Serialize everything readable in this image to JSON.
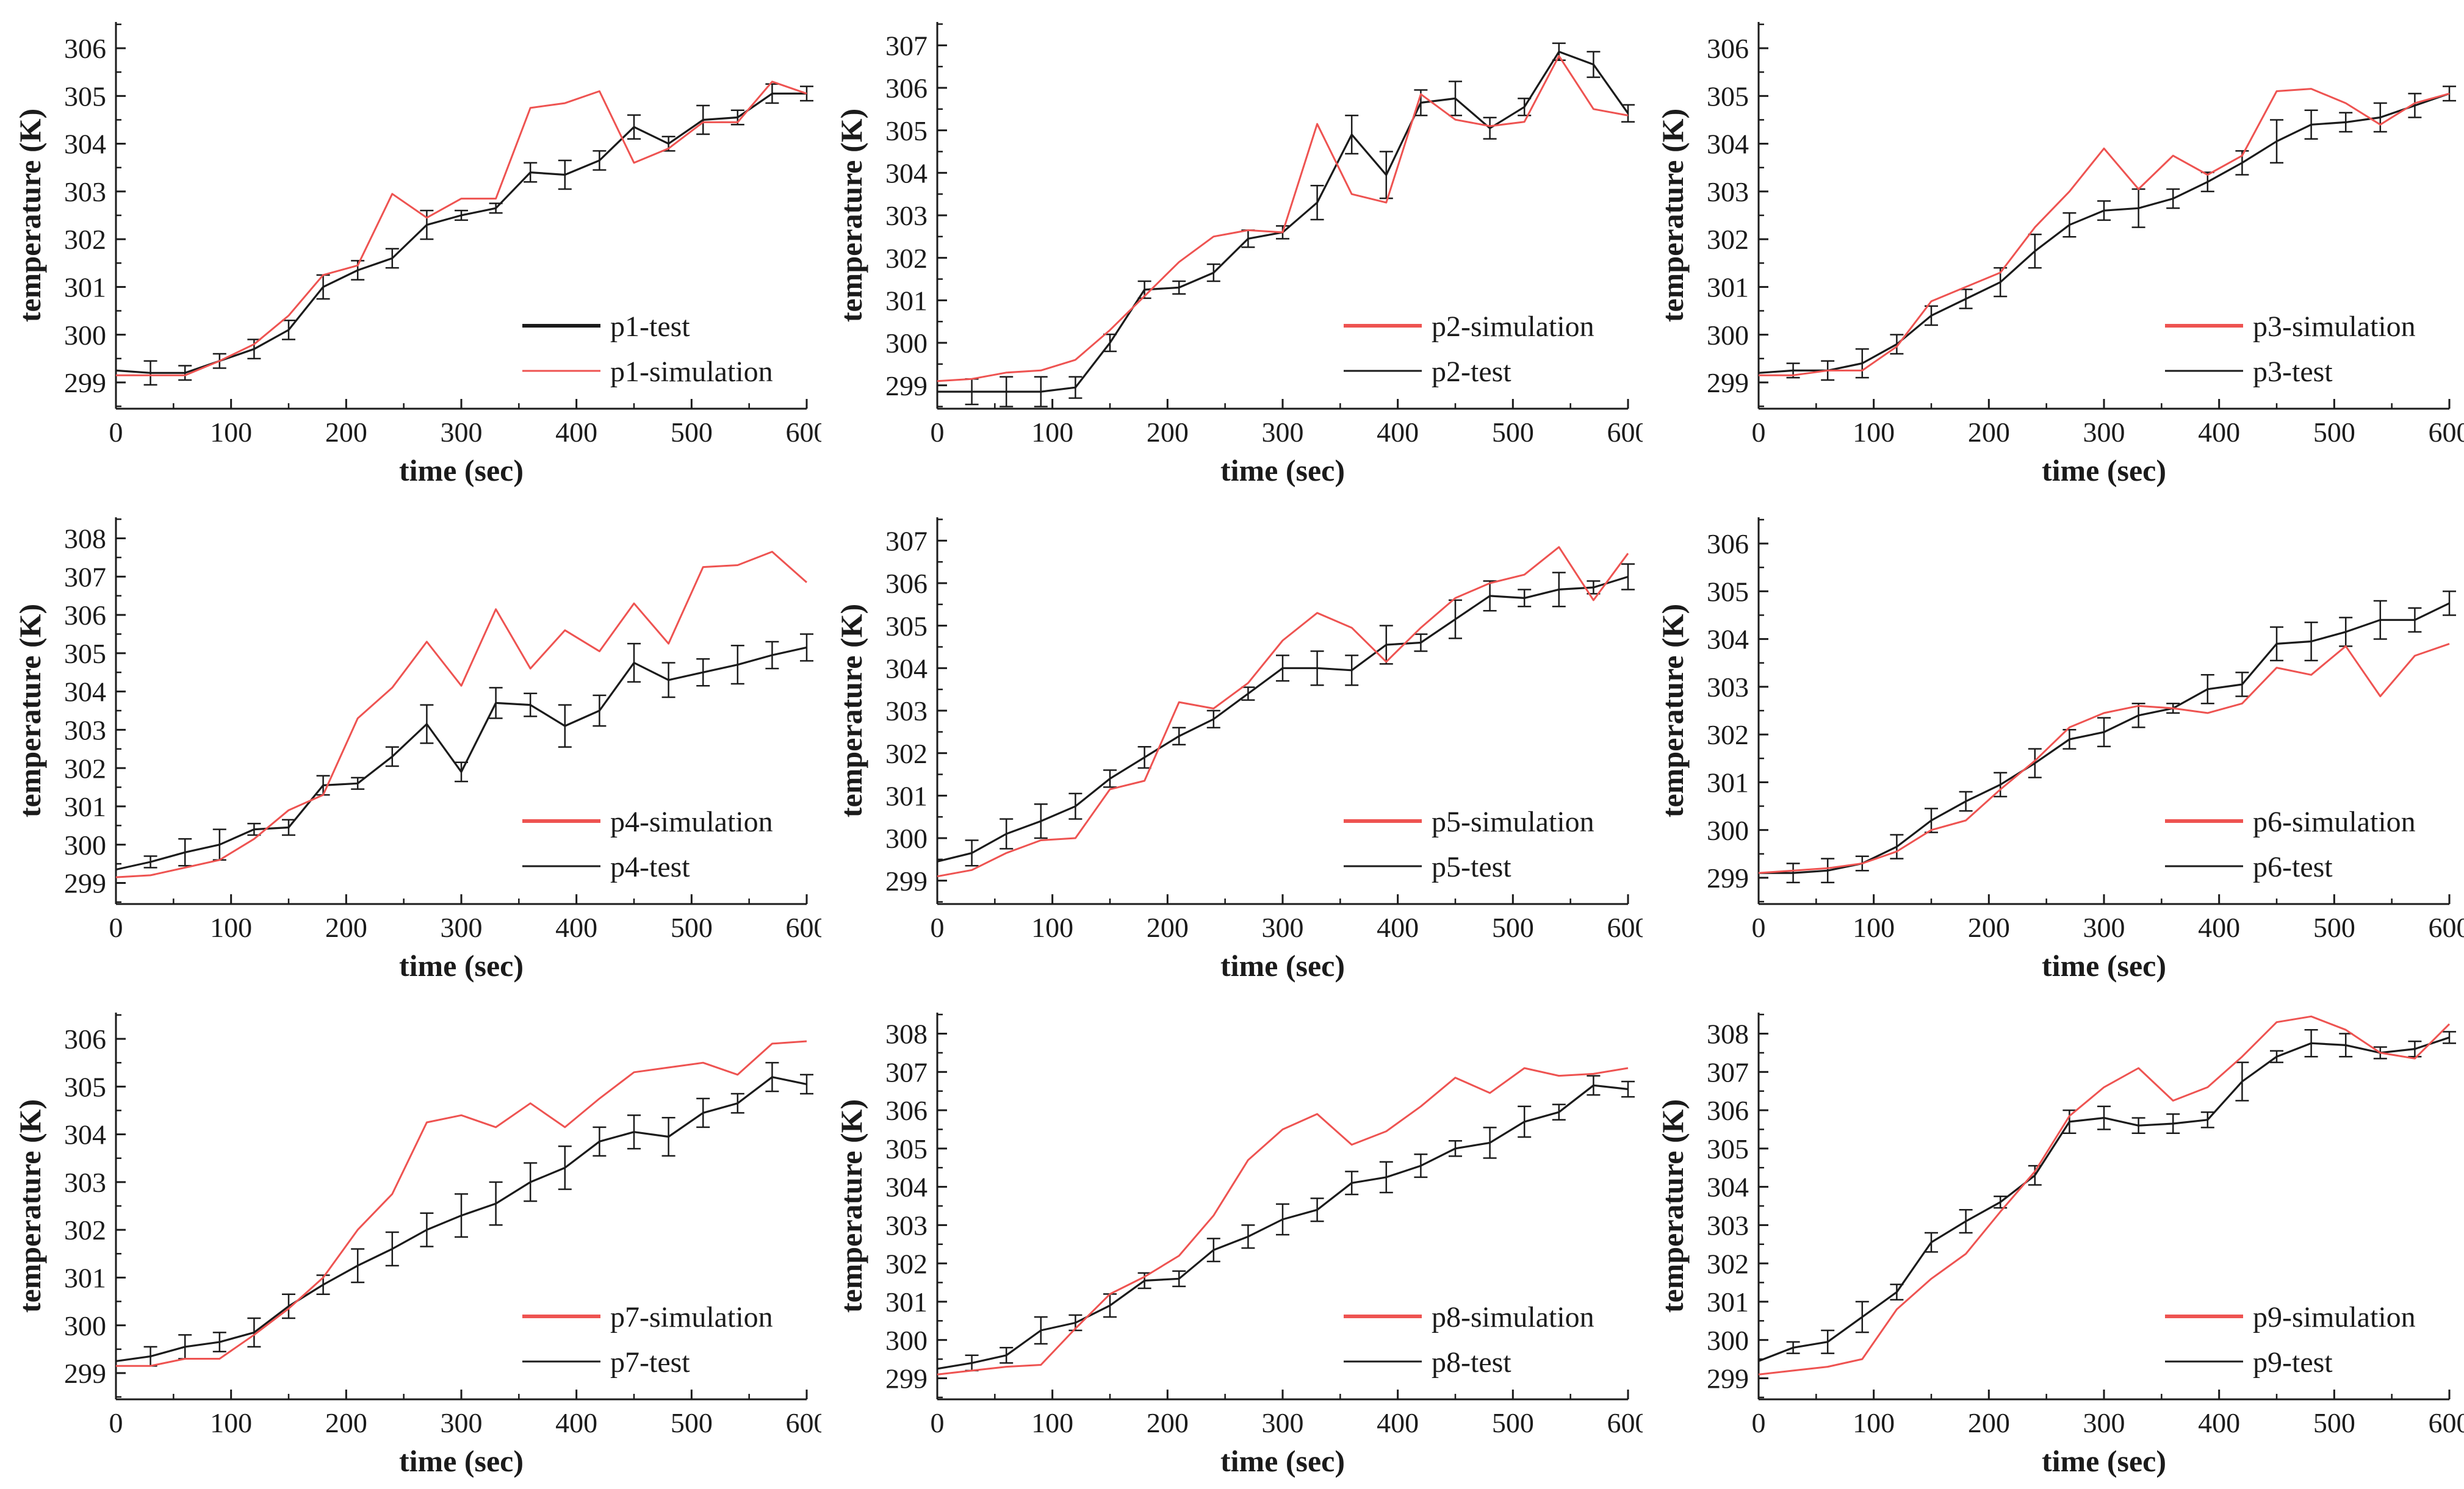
{
  "figure": {
    "xlabel": "time (sec)",
    "ylabel": "temperature (K)",
    "x_major_ticks": [
      0,
      100,
      200,
      300,
      400,
      500,
      600
    ],
    "x_minor_ticks": [
      50,
      150,
      250,
      350,
      450,
      550
    ],
    "xlim": [
      0,
      600
    ],
    "time_x": [
      0,
      30,
      60,
      90,
      120,
      150,
      180,
      210,
      240,
      270,
      300,
      330,
      360,
      390,
      420,
      450,
      480,
      510,
      540,
      570,
      600
    ],
    "colors": {
      "test": "#1b1b1b",
      "simulation": "#ee5351",
      "axis": "#1b1b1b",
      "background": "#ffffff"
    },
    "grid": "off",
    "legend_position": "lower-right"
  },
  "chart_data": [
    {
      "id": "p1",
      "type": "line",
      "xlabel": "time (sec)",
      "ylabel": "temperature (K)",
      "xlim": [
        0,
        600
      ],
      "ylim": [
        299,
        306
      ],
      "y_ticks": [
        299,
        300,
        301,
        302,
        303,
        304,
        305,
        306
      ],
      "legend": [
        "p1-test",
        "p1-simulation"
      ],
      "series": [
        {
          "name": "p1-test",
          "role": "test",
          "color": "#1b1b1b",
          "error_bars": true,
          "values": [
            299.25,
            299.2,
            299.2,
            299.45,
            299.7,
            300.1,
            301.0,
            301.35,
            301.6,
            302.3,
            302.5,
            302.65,
            303.4,
            303.35,
            303.65,
            304.35,
            304.0,
            304.5,
            304.55,
            305.05,
            305.05
          ],
          "err": [
            0,
            0.25,
            0.15,
            0.15,
            0.2,
            0.2,
            0.25,
            0.2,
            0.2,
            0.3,
            0.1,
            0.1,
            0.2,
            0.3,
            0.2,
            0.25,
            0.15,
            0.3,
            0.15,
            0.2,
            0.15
          ]
        },
        {
          "name": "p1-simulation",
          "role": "simulation",
          "color": "#ee5351",
          "error_bars": false,
          "values": [
            299.15,
            299.15,
            299.15,
            299.45,
            299.8,
            300.4,
            301.25,
            301.45,
            302.95,
            302.45,
            302.85,
            302.85,
            304.75,
            304.85,
            305.1,
            303.6,
            303.9,
            304.45,
            304.45,
            305.3,
            305.05
          ]
        }
      ]
    },
    {
      "id": "p2",
      "type": "line",
      "xlabel": "time (sec)",
      "ylabel": "temperature (K)",
      "xlim": [
        0,
        600
      ],
      "ylim": [
        299,
        307
      ],
      "y_ticks": [
        299,
        300,
        301,
        302,
        303,
        304,
        305,
        306,
        307
      ],
      "legend": [
        "p2-simulation",
        "p2-test"
      ],
      "series": [
        {
          "name": "p2-test",
          "role": "test",
          "color": "#1b1b1b",
          "error_bars": true,
          "values": [
            298.85,
            298.85,
            298.85,
            298.85,
            298.95,
            300.0,
            301.25,
            301.3,
            301.65,
            302.45,
            302.6,
            303.3,
            304.9,
            303.95,
            305.65,
            305.75,
            305.05,
            305.55,
            306.85,
            306.55,
            305.4
          ],
          "err": [
            0,
            0.3,
            0.35,
            0.35,
            0.25,
            0.2,
            0.2,
            0.15,
            0.2,
            0.2,
            0.15,
            0.4,
            0.45,
            0.55,
            0.3,
            0.4,
            0.25,
            0.2,
            0.2,
            0.3,
            0.2
          ]
        },
        {
          "name": "p2-simulation",
          "role": "simulation",
          "color": "#ee5351",
          "error_bars": false,
          "values": [
            299.1,
            299.15,
            299.3,
            299.35,
            299.6,
            300.3,
            301.1,
            301.9,
            302.5,
            302.65,
            302.6,
            305.15,
            303.5,
            303.3,
            305.85,
            305.25,
            305.1,
            305.2,
            306.75,
            305.5,
            305.35
          ]
        }
      ]
    },
    {
      "id": "p3",
      "type": "line",
      "xlabel": "time (sec)",
      "ylabel": "temperature (K)",
      "xlim": [
        0,
        600
      ],
      "ylim": [
        299,
        306
      ],
      "y_ticks": [
        299,
        300,
        301,
        302,
        303,
        304,
        305,
        306
      ],
      "legend": [
        "p3-simulation",
        "p3-test"
      ],
      "series": [
        {
          "name": "p3-test",
          "role": "test",
          "color": "#1b1b1b",
          "error_bars": true,
          "values": [
            299.2,
            299.25,
            299.25,
            299.4,
            299.8,
            300.4,
            300.75,
            301.1,
            301.75,
            302.3,
            302.6,
            302.65,
            302.85,
            303.2,
            303.6,
            304.05,
            304.4,
            304.45,
            304.55,
            304.8,
            305.05
          ],
          "err": [
            0,
            0.15,
            0.2,
            0.3,
            0.2,
            0.2,
            0.2,
            0.3,
            0.35,
            0.25,
            0.2,
            0.4,
            0.2,
            0.2,
            0.25,
            0.45,
            0.3,
            0.2,
            0.3,
            0.25,
            0.15
          ]
        },
        {
          "name": "p3-simulation",
          "role": "simulation",
          "color": "#ee5351",
          "error_bars": false,
          "values": [
            299.15,
            299.15,
            299.25,
            299.25,
            299.75,
            300.7,
            301.0,
            301.3,
            302.25,
            303.0,
            303.9,
            303.05,
            303.75,
            303.35,
            303.75,
            305.1,
            305.15,
            304.85,
            304.4,
            304.85,
            305.05
          ]
        }
      ]
    },
    {
      "id": "p4",
      "type": "line",
      "xlabel": "time (sec)",
      "ylabel": "temperature (K)",
      "xlim": [
        0,
        600
      ],
      "ylim": [
        299,
        308
      ],
      "y_ticks": [
        299,
        300,
        301,
        302,
        303,
        304,
        305,
        306,
        307,
        308
      ],
      "legend": [
        "p4-simulation",
        "p4-test"
      ],
      "series": [
        {
          "name": "p4-test",
          "role": "test",
          "color": "#1b1b1b",
          "error_bars": true,
          "values": [
            299.35,
            299.55,
            299.8,
            300.0,
            300.4,
            300.45,
            301.55,
            301.6,
            302.3,
            303.15,
            301.9,
            303.7,
            303.65,
            303.1,
            303.5,
            304.75,
            304.3,
            304.5,
            304.7,
            304.95,
            305.15
          ],
          "err": [
            0,
            0.15,
            0.35,
            0.4,
            0.15,
            0.2,
            0.25,
            0.15,
            0.25,
            0.5,
            0.25,
            0.4,
            0.3,
            0.55,
            0.4,
            0.5,
            0.45,
            0.35,
            0.5,
            0.35,
            0.35
          ]
        },
        {
          "name": "p4-simulation",
          "role": "simulation",
          "color": "#ee5351",
          "error_bars": false,
          "values": [
            299.15,
            299.2,
            299.4,
            299.6,
            300.15,
            300.9,
            301.3,
            303.3,
            304.1,
            305.3,
            304.15,
            306.15,
            304.6,
            305.6,
            305.05,
            306.3,
            305.25,
            307.25,
            307.3,
            307.65,
            306.85
          ]
        }
      ]
    },
    {
      "id": "p5",
      "type": "line",
      "xlabel": "time (sec)",
      "ylabel": "temperature (K)",
      "xlim": [
        0,
        600
      ],
      "ylim": [
        299,
        307
      ],
      "y_ticks": [
        299,
        300,
        301,
        302,
        303,
        304,
        305,
        306,
        307
      ],
      "legend": [
        "p5-simulation",
        "p5-test"
      ],
      "series": [
        {
          "name": "p5-test",
          "role": "test",
          "color": "#1b1b1b",
          "error_bars": true,
          "values": [
            299.45,
            299.65,
            300.1,
            300.4,
            300.75,
            301.4,
            301.9,
            302.4,
            302.8,
            303.4,
            304.0,
            304.0,
            303.95,
            304.55,
            304.6,
            305.15,
            305.7,
            305.65,
            305.85,
            305.9,
            306.15
          ],
          "err": [
            0,
            0.3,
            0.35,
            0.4,
            0.3,
            0.2,
            0.25,
            0.2,
            0.2,
            0.15,
            0.3,
            0.4,
            0.35,
            0.45,
            0.2,
            0.45,
            0.35,
            0.2,
            0.4,
            0.15,
            0.3
          ]
        },
        {
          "name": "p5-simulation",
          "role": "simulation",
          "color": "#ee5351",
          "error_bars": false,
          "values": [
            299.1,
            299.25,
            299.65,
            299.95,
            300.0,
            301.15,
            301.35,
            303.2,
            303.05,
            303.65,
            304.65,
            305.3,
            304.95,
            304.15,
            304.95,
            305.65,
            306.0,
            306.2,
            306.85,
            305.6,
            306.7
          ]
        }
      ]
    },
    {
      "id": "p6",
      "type": "line",
      "xlabel": "time (sec)",
      "ylabel": "temperature (K)",
      "xlim": [
        0,
        600
      ],
      "ylim": [
        299,
        306
      ],
      "y_ticks": [
        299,
        300,
        301,
        302,
        303,
        304,
        305,
        306
      ],
      "legend": [
        "p6-simulation",
        "p6-test"
      ],
      "series": [
        {
          "name": "p6-test",
          "role": "test",
          "color": "#1b1b1b",
          "error_bars": true,
          "values": [
            299.1,
            299.1,
            299.15,
            299.3,
            299.65,
            300.2,
            300.6,
            300.95,
            301.4,
            301.9,
            302.05,
            302.4,
            302.55,
            302.95,
            303.05,
            303.9,
            303.95,
            304.15,
            304.4,
            304.4,
            304.75
          ],
          "err": [
            0,
            0.2,
            0.25,
            0.15,
            0.25,
            0.25,
            0.2,
            0.25,
            0.3,
            0.2,
            0.3,
            0.25,
            0.1,
            0.3,
            0.25,
            0.35,
            0.4,
            0.3,
            0.4,
            0.25,
            0.25
          ]
        },
        {
          "name": "p6-simulation",
          "role": "simulation",
          "color": "#ee5351",
          "error_bars": false,
          "values": [
            299.1,
            299.15,
            299.2,
            299.3,
            299.55,
            300.0,
            300.2,
            300.85,
            301.45,
            302.15,
            302.45,
            302.6,
            302.55,
            302.45,
            302.65,
            303.4,
            303.25,
            303.85,
            302.8,
            303.65,
            303.9
          ]
        }
      ]
    },
    {
      "id": "p7",
      "type": "line",
      "xlabel": "time (sec)",
      "ylabel": "temperature (K)",
      "xlim": [
        0,
        600
      ],
      "ylim": [
        299,
        306
      ],
      "y_ticks": [
        299,
        300,
        301,
        302,
        303,
        304,
        305,
        306
      ],
      "legend": [
        "p7-simulation",
        "p7-test"
      ],
      "series": [
        {
          "name": "p7-test",
          "role": "test",
          "color": "#1b1b1b",
          "error_bars": true,
          "values": [
            299.25,
            299.35,
            299.55,
            299.65,
            299.85,
            300.4,
            300.85,
            301.25,
            301.6,
            302.0,
            302.3,
            302.55,
            303.0,
            303.3,
            303.85,
            304.05,
            303.95,
            304.45,
            304.65,
            305.2,
            305.05
          ],
          "err": [
            0,
            0.2,
            0.25,
            0.2,
            0.3,
            0.25,
            0.2,
            0.35,
            0.35,
            0.35,
            0.45,
            0.45,
            0.4,
            0.45,
            0.3,
            0.35,
            0.4,
            0.3,
            0.2,
            0.3,
            0.2
          ]
        },
        {
          "name": "p7-simulation",
          "role": "simulation",
          "color": "#ee5351",
          "error_bars": false,
          "values": [
            299.15,
            299.15,
            299.3,
            299.3,
            299.8,
            300.35,
            301.0,
            302.0,
            302.75,
            304.25,
            304.4,
            304.15,
            304.65,
            304.15,
            304.75,
            305.3,
            305.4,
            305.5,
            305.25,
            305.9,
            305.95
          ]
        }
      ]
    },
    {
      "id": "p8",
      "type": "line",
      "xlabel": "time (sec)",
      "ylabel": "temperature (K)",
      "xlim": [
        0,
        600
      ],
      "ylim": [
        299,
        308
      ],
      "y_ticks": [
        299,
        300,
        301,
        302,
        303,
        304,
        305,
        306,
        307,
        308
      ],
      "legend": [
        "p8-simulation",
        "p8-test"
      ],
      "series": [
        {
          "name": "p8-test",
          "role": "test",
          "color": "#1b1b1b",
          "error_bars": true,
          "values": [
            299.25,
            299.4,
            299.6,
            300.25,
            300.45,
            300.9,
            301.55,
            301.6,
            302.35,
            302.7,
            303.15,
            303.4,
            304.1,
            304.25,
            304.55,
            305.0,
            305.15,
            305.7,
            305.95,
            306.65,
            306.55
          ],
          "err": [
            0,
            0.2,
            0.2,
            0.35,
            0.2,
            0.3,
            0.2,
            0.2,
            0.3,
            0.3,
            0.4,
            0.3,
            0.3,
            0.4,
            0.3,
            0.2,
            0.4,
            0.4,
            0.2,
            0.25,
            0.2
          ]
        },
        {
          "name": "p8-simulation",
          "role": "simulation",
          "color": "#ee5351",
          "error_bars": false,
          "values": [
            299.1,
            299.2,
            299.3,
            299.35,
            300.3,
            301.2,
            301.65,
            302.2,
            303.25,
            304.7,
            305.5,
            305.9,
            305.1,
            305.45,
            306.1,
            306.85,
            306.45,
            307.1,
            306.9,
            306.95,
            307.1
          ]
        }
      ]
    },
    {
      "id": "p9",
      "type": "line",
      "xlabel": "time (sec)",
      "ylabel": "temperature (K)",
      "xlim": [
        0,
        600
      ],
      "ylim": [
        299,
        308
      ],
      "y_ticks": [
        299,
        300,
        301,
        302,
        303,
        304,
        305,
        306,
        307,
        308
      ],
      "legend": [
        "p9-simulation",
        "p9-test"
      ],
      "series": [
        {
          "name": "p9-test",
          "role": "test",
          "color": "#1b1b1b",
          "error_bars": true,
          "values": [
            299.45,
            299.8,
            299.95,
            300.6,
            301.25,
            302.55,
            303.1,
            303.6,
            304.3,
            305.7,
            305.8,
            305.6,
            305.65,
            305.75,
            306.75,
            307.4,
            307.75,
            307.7,
            307.5,
            307.6,
            307.9
          ],
          "err": [
            0,
            0.15,
            0.3,
            0.4,
            0.2,
            0.25,
            0.3,
            0.15,
            0.25,
            0.3,
            0.3,
            0.2,
            0.25,
            0.2,
            0.5,
            0.15,
            0.35,
            0.3,
            0.15,
            0.2,
            0.15
          ]
        },
        {
          "name": "p9-simulation",
          "role": "simulation",
          "color": "#ee5351",
          "error_bars": false,
          "values": [
            299.1,
            299.2,
            299.3,
            299.5,
            300.8,
            301.6,
            302.25,
            303.35,
            304.4,
            305.85,
            306.6,
            307.1,
            306.25,
            306.6,
            307.4,
            308.3,
            308.45,
            308.1,
            307.5,
            307.35,
            308.25
          ]
        }
      ]
    }
  ]
}
